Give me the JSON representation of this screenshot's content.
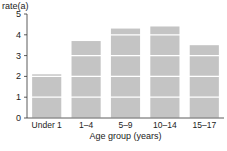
{
  "chart_data": {
    "type": "bar",
    "y_label": "rate(a)",
    "x_label": "Age group (years)",
    "categories": [
      "Under 1",
      "1–4",
      "5–9",
      "10–14",
      "15–17"
    ],
    "values": [
      2.1,
      3.7,
      4.3,
      4.4,
      3.5
    ],
    "color": "#c4c4c4",
    "ylim": [
      0,
      5
    ],
    "yticks": [
      0,
      1,
      2,
      3,
      4,
      5
    ],
    "grid": true
  }
}
